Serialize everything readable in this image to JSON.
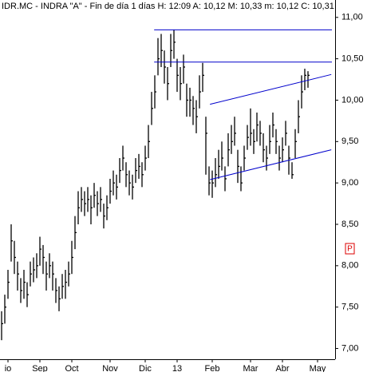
{
  "chart_data": {
    "type": "hlc",
    "title": "IDR.MC - INDRA \"A\" - Fin de día 1 días  H: 12:09  A: 10,12  M: 10,33  m: 10,12  C: 10,31",
    "marker_label": "P",
    "color": "#000000",
    "xlim": [
      -0.5,
      104.5
    ],
    "ylim": [
      6.87,
      11.21
    ],
    "xticks": [
      {
        "value": 2,
        "label": "io"
      },
      {
        "value": 12,
        "label": "Sep"
      },
      {
        "value": 22,
        "label": "Oct"
      },
      {
        "value": 34,
        "label": "Nov"
      },
      {
        "value": 45,
        "label": "Dic"
      },
      {
        "value": 55,
        "label": "13"
      },
      {
        "value": 66,
        "label": "Feb"
      },
      {
        "value": 78,
        "label": "Mar"
      },
      {
        "value": 88,
        "label": "Abr"
      },
      {
        "value": 99,
        "label": "May"
      }
    ],
    "yticks": [
      {
        "value": 7,
        "label": "7,00"
      },
      {
        "value": 7.5,
        "label": "7,50"
      },
      {
        "value": 8,
        "label": "8,00"
      },
      {
        "value": 8.5,
        "label": "8,50"
      },
      {
        "value": 9,
        "label": "9,00"
      },
      {
        "value": 9.5,
        "label": "9,50"
      },
      {
        "value": 10,
        "label": "10,00"
      },
      {
        "value": 10.5,
        "label": "10,50"
      },
      {
        "value": 11,
        "label": "11,00"
      }
    ],
    "high": [
      7.45,
      7.65,
      7.95,
      8.5,
      8.3,
      8.05,
      7.85,
      7.95,
      7.8,
      8.05,
      8.1,
      8.15,
      8.35,
      8.25,
      8.05,
      8.15,
      8.05,
      7.85,
      7.75,
      7.9,
      7.95,
      8.05,
      8.3,
      8.6,
      8.9,
      8.95,
      8.9,
      8.95,
      8.85,
      9.0,
      8.9,
      8.95,
      8.75,
      8.85,
      9.05,
      9.15,
      9.1,
      9.3,
      9.45,
      9.25,
      9.15,
      9.1,
      9.3,
      9.35,
      9.25,
      9.45,
      9.7,
      10.1,
      10.3,
      10.75,
      10.8,
      10.6,
      10.4,
      10.8,
      10.85,
      10.5,
      10.4,
      10.55,
      10.2,
      10.15,
      10.05,
      10.0,
      10.3,
      10.45,
      9.8,
      9.2,
      9.15,
      9.3,
      9.4,
      9.5,
      9.2,
      9.6,
      9.7,
      9.8,
      9.4,
      9.2,
      9.45,
      9.7,
      9.9,
      9.65,
      9.85,
      9.75,
      9.6,
      9.45,
      9.7,
      9.85,
      9.65,
      9.45,
      9.55,
      9.75,
      9.45,
      9.25,
      9.65,
      10.0,
      10.3,
      10.38,
      10.35
    ],
    "low": [
      7.1,
      7.3,
      7.6,
      8.05,
      7.9,
      7.7,
      7.55,
      7.6,
      7.5,
      7.75,
      7.8,
      7.85,
      8.0,
      7.9,
      7.7,
      7.85,
      7.7,
      7.55,
      7.45,
      7.6,
      7.6,
      7.75,
      7.9,
      8.2,
      8.5,
      8.65,
      8.6,
      8.65,
      8.5,
      8.7,
      8.6,
      8.65,
      8.45,
      8.55,
      8.75,
      8.85,
      8.8,
      9.0,
      9.15,
      8.95,
      8.85,
      8.8,
      9.0,
      9.05,
      8.95,
      9.15,
      9.3,
      9.7,
      9.9,
      10.3,
      10.4,
      10.2,
      10.0,
      10.4,
      10.5,
      10.1,
      10.0,
      10.2,
      9.8,
      9.8,
      9.7,
      9.6,
      9.9,
      10.1,
      9.1,
      8.85,
      8.82,
      8.95,
      9.05,
      9.15,
      8.9,
      9.2,
      9.35,
      9.45,
      9.0,
      8.9,
      9.15,
      9.4,
      9.45,
      9.35,
      9.5,
      9.45,
      9.25,
      9.15,
      9.35,
      9.55,
      9.35,
      9.15,
      9.25,
      9.45,
      9.1,
      9.05,
      9.3,
      9.6,
      9.9,
      10.12,
      10.15
    ],
    "close": [
      7.3,
      7.5,
      7.8,
      8.3,
      8.1,
      7.9,
      7.7,
      7.8,
      7.65,
      7.9,
      7.95,
      8.0,
      8.2,
      8.1,
      7.9,
      8.0,
      7.9,
      7.7,
      7.6,
      7.75,
      7.8,
      7.9,
      8.1,
      8.4,
      8.7,
      8.8,
      8.75,
      8.8,
      8.7,
      8.85,
      8.75,
      8.8,
      8.6,
      8.7,
      8.9,
      9.0,
      8.95,
      9.15,
      9.3,
      9.1,
      9.0,
      8.95,
      9.15,
      9.2,
      9.1,
      9.3,
      9.5,
      9.9,
      10.1,
      10.5,
      10.6,
      10.4,
      10.2,
      10.6,
      10.7,
      10.3,
      10.2,
      10.4,
      10.0,
      10.0,
      9.9,
      9.8,
      10.1,
      10.3,
      9.6,
      9.0,
      9.0,
      9.1,
      9.2,
      9.3,
      9.05,
      9.4,
      9.5,
      9.6,
      9.2,
      9.0,
      9.3,
      9.55,
      9.6,
      9.5,
      9.7,
      9.6,
      9.4,
      9.3,
      9.5,
      9.7,
      9.5,
      9.3,
      9.4,
      9.6,
      9.3,
      9.1,
      9.5,
      9.8,
      10.1,
      10.3,
      10.3
    ],
    "lines": [
      {
        "x": [
          47.8,
          103.5
        ],
        "y": [
          10.85,
          10.85
        ],
        "color": "#0000cc"
      },
      {
        "x": [
          47.8,
          103.5
        ],
        "y": [
          10.46,
          10.46
        ],
        "color": "#0000cc"
      },
      {
        "x": [
          65.3,
          103.3
        ],
        "y": [
          9.95,
          10.31
        ],
        "color": "#0000cc"
      },
      {
        "x": [
          65.3,
          103.3
        ],
        "y": [
          9.04,
          9.4
        ],
        "color": "#0000cc"
      }
    ]
  }
}
